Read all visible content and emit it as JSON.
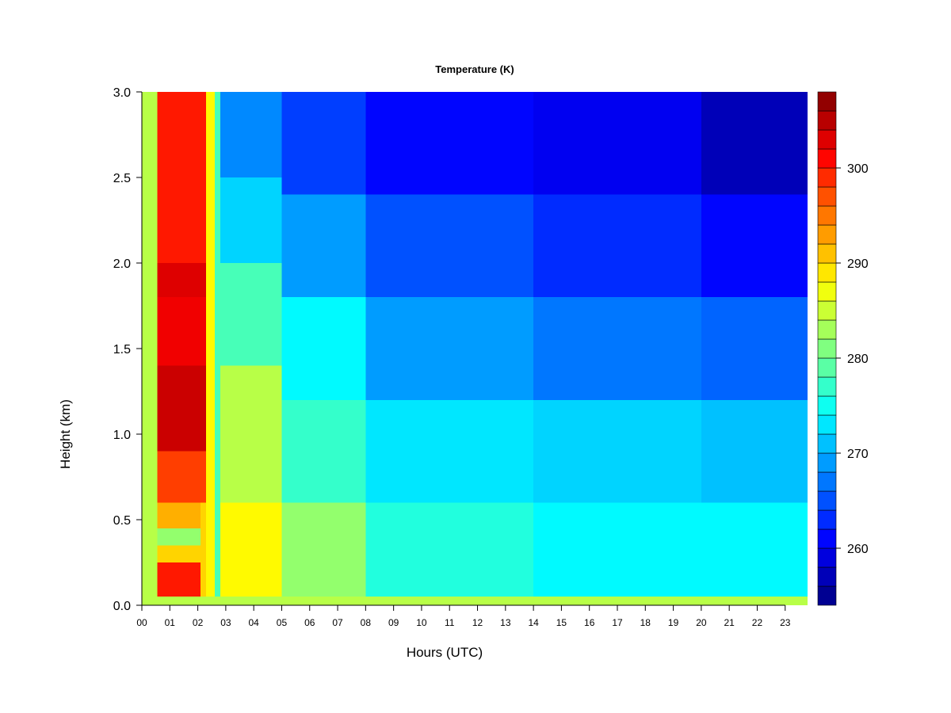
{
  "chart_data": {
    "type": "heatmap",
    "title": "Temperature (K)",
    "xlabel": "Hours (UTC)",
    "ylabel": "Height (km)",
    "x_ticks": [
      "00",
      "01",
      "02",
      "03",
      "04",
      "05",
      "06",
      "07",
      "08",
      "09",
      "10",
      "11",
      "12",
      "13",
      "14",
      "15",
      "16",
      "17",
      "18",
      "19",
      "20",
      "21",
      "22",
      "23"
    ],
    "xlim": [
      0,
      23.8
    ],
    "y_ticks": [
      "0.0",
      "0.5",
      "1.0",
      "1.5",
      "2.0",
      "2.5",
      "3.0"
    ],
    "ylim": [
      0,
      3.0
    ],
    "colorbar": {
      "ticks": [
        "260",
        "270",
        "280",
        "290",
        "300"
      ],
      "range": [
        254,
        308
      ],
      "levels": 27,
      "colors": [
        "#00007F",
        "#0000BF",
        "#0000FF",
        "#0040FF",
        "#0080FF",
        "#00BFFF",
        "#00FFFF",
        "#40FFBF",
        "#80FF80",
        "#BFFF40",
        "#FFFF00",
        "#FFBF00",
        "#FF8000",
        "#FF4000",
        "#FF0000",
        "#BF0000",
        "#7F0000"
      ]
    },
    "cells": [
      {
        "x0": 0.0,
        "x1": 0.55,
        "y0": 0.0,
        "y1": 3.0,
        "value": 284
      },
      {
        "x0": 0.55,
        "x1": 2.1,
        "y0": 0.0,
        "y1": 0.25,
        "value": 300
      },
      {
        "x0": 0.55,
        "x1": 2.1,
        "y0": 0.25,
        "y1": 0.35,
        "value": 290
      },
      {
        "x0": 0.55,
        "x1": 2.1,
        "y0": 0.35,
        "y1": 0.45,
        "value": 282
      },
      {
        "x0": 0.55,
        "x1": 2.1,
        "y0": 0.45,
        "y1": 0.6,
        "value": 292
      },
      {
        "x0": 0.55,
        "x1": 2.3,
        "y0": 0.6,
        "y1": 0.9,
        "value": 298
      },
      {
        "x0": 0.55,
        "x1": 2.3,
        "y0": 0.9,
        "y1": 1.4,
        "value": 304
      },
      {
        "x0": 0.55,
        "x1": 2.3,
        "y0": 1.4,
        "y1": 1.8,
        "value": 302
      },
      {
        "x0": 0.55,
        "x1": 2.3,
        "y0": 1.8,
        "y1": 2.0,
        "value": 303
      },
      {
        "x0": 0.55,
        "x1": 2.3,
        "y0": 2.0,
        "y1": 3.0,
        "value": 300
      },
      {
        "x0": 2.3,
        "x1": 2.6,
        "y0": 0.0,
        "y1": 3.0,
        "value": 288
      },
      {
        "x0": 2.6,
        "x1": 2.8,
        "y0": 0.0,
        "y1": 3.0,
        "value": 278
      },
      {
        "x0": 2.1,
        "x1": 2.3,
        "y0": 0.0,
        "y1": 0.6,
        "value": 290
      },
      {
        "x0": 2.8,
        "x1": 5.0,
        "y0": 0.0,
        "y1": 0.6,
        "value": 288
      },
      {
        "x0": 2.8,
        "x1": 5.0,
        "y0": 0.6,
        "y1": 1.4,
        "value": 284
      },
      {
        "x0": 2.8,
        "x1": 5.0,
        "y0": 1.4,
        "y1": 2.0,
        "value": 278
      },
      {
        "x0": 2.8,
        "x1": 5.0,
        "y0": 2.0,
        "y1": 2.5,
        "value": 272
      },
      {
        "x0": 2.8,
        "x1": 5.0,
        "y0": 2.5,
        "y1": 3.0,
        "value": 268
      },
      {
        "x0": 5.0,
        "x1": 8.0,
        "y0": 0.0,
        "y1": 0.6,
        "value": 282
      },
      {
        "x0": 5.0,
        "x1": 8.0,
        "y0": 0.6,
        "y1": 1.2,
        "value": 277
      },
      {
        "x0": 5.0,
        "x1": 8.0,
        "y0": 1.2,
        "y1": 1.8,
        "value": 274
      },
      {
        "x0": 5.0,
        "x1": 8.0,
        "y0": 1.8,
        "y1": 2.4,
        "value": 269
      },
      {
        "x0": 5.0,
        "x1": 8.0,
        "y0": 2.4,
        "y1": 3.0,
        "value": 264
      },
      {
        "x0": 8.0,
        "x1": 14.0,
        "y0": 0.0,
        "y1": 0.6,
        "value": 276
      },
      {
        "x0": 8.0,
        "x1": 14.0,
        "y0": 0.6,
        "y1": 1.2,
        "value": 273
      },
      {
        "x0": 8.0,
        "x1": 14.0,
        "y0": 1.2,
        "y1": 1.8,
        "value": 269
      },
      {
        "x0": 8.0,
        "x1": 14.0,
        "y0": 1.8,
        "y1": 2.4,
        "value": 265
      },
      {
        "x0": 8.0,
        "x1": 14.0,
        "y0": 2.4,
        "y1": 3.0,
        "value": 261
      },
      {
        "x0": 14.0,
        "x1": 20.0,
        "y0": 0.0,
        "y1": 0.6,
        "value": 274
      },
      {
        "x0": 14.0,
        "x1": 20.0,
        "y0": 0.6,
        "y1": 1.2,
        "value": 272
      },
      {
        "x0": 14.0,
        "x1": 20.0,
        "y0": 1.2,
        "y1": 1.8,
        "value": 267
      },
      {
        "x0": 14.0,
        "x1": 20.0,
        "y0": 1.8,
        "y1": 2.4,
        "value": 263
      },
      {
        "x0": 14.0,
        "x1": 20.0,
        "y0": 2.4,
        "y1": 3.0,
        "value": 260
      },
      {
        "x0": 20.0,
        "x1": 23.8,
        "y0": 0.0,
        "y1": 0.6,
        "value": 274
      },
      {
        "x0": 20.0,
        "x1": 23.8,
        "y0": 0.6,
        "y1": 1.2,
        "value": 271
      },
      {
        "x0": 20.0,
        "x1": 23.8,
        "y0": 1.2,
        "y1": 1.8,
        "value": 266
      },
      {
        "x0": 20.0,
        "x1": 23.8,
        "y0": 1.8,
        "y1": 2.4,
        "value": 261
      },
      {
        "x0": 20.0,
        "x1": 23.8,
        "y0": 2.4,
        "y1": 3.0,
        "value": 257
      },
      {
        "x0": 0.0,
        "x1": 23.8,
        "y0": 0.0,
        "y1": 0.05,
        "value": 284
      }
    ]
  }
}
